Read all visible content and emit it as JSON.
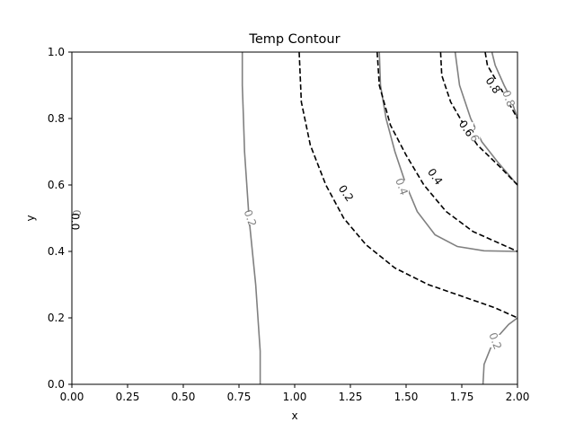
{
  "chart_data": {
    "type": "contour",
    "title": "Temp Contour",
    "xlabel": "x",
    "ylabel": "y",
    "xlim": [
      0,
      2
    ],
    "ylim": [
      0,
      1
    ],
    "x_ticks": [
      "0.00",
      "0.25",
      "0.50",
      "0.75",
      "1.00",
      "1.25",
      "1.50",
      "1.75",
      "2.00"
    ],
    "y_ticks": [
      "0.0",
      "0.2",
      "0.4",
      "0.6",
      "0.8",
      "1.0"
    ],
    "grid": false,
    "series": [
      {
        "style": "solid",
        "color": "#808080",
        "contours": [
          {
            "level": "0.2",
            "points": [
              [
                0.765,
                1.0
              ],
              [
                0.765,
                0.9
              ],
              [
                0.77,
                0.8
              ],
              [
                0.775,
                0.7
              ],
              [
                0.785,
                0.6
              ],
              [
                0.795,
                0.5
              ],
              [
                0.81,
                0.4
              ],
              [
                0.825,
                0.3
              ],
              [
                0.835,
                0.2
              ],
              [
                0.845,
                0.1
              ],
              [
                0.845,
                0.0
              ]
            ]
          },
          {
            "level": "0.4",
            "points": [
              [
                1.38,
                1.0
              ],
              [
                1.385,
                0.9
              ],
              [
                1.41,
                0.8
              ],
              [
                1.45,
                0.7
              ],
              [
                1.5,
                0.6
              ],
              [
                1.55,
                0.52
              ],
              [
                1.63,
                0.45
              ],
              [
                1.73,
                0.415
              ],
              [
                1.85,
                0.402
              ],
              [
                2.0,
                0.4
              ]
            ]
          },
          {
            "level": "0.6",
            "points": [
              [
                1.72,
                1.0
              ],
              [
                1.74,
                0.9
              ],
              [
                1.79,
                0.8
              ],
              [
                1.84,
                0.73
              ],
              [
                1.91,
                0.67
              ],
              [
                2.0,
                0.6
              ]
            ]
          },
          {
            "level": "0.8",
            "points": [
              [
                1.885,
                1.0
              ],
              [
                1.9,
                0.96
              ],
              [
                1.94,
                0.9
              ],
              [
                1.97,
                0.86
              ],
              [
                2.0,
                0.8
              ]
            ]
          },
          {
            "level": "0.2",
            "points": [
              [
                1.845,
                0.0
              ],
              [
                1.85,
                0.06
              ],
              [
                1.88,
                0.11
              ],
              [
                1.92,
                0.15
              ],
              [
                1.96,
                0.18
              ],
              [
                2.0,
                0.2
              ]
            ]
          }
        ],
        "labels": [
          {
            "text": "0.2",
            "at": [
              0.8,
              0.5
            ]
          },
          {
            "text": "0.4",
            "at": [
              1.48,
              0.595
            ]
          },
          {
            "text": "0.6",
            "at": [
              1.8,
              0.755
            ]
          },
          {
            "text": "0.8",
            "at": [
              1.96,
              0.86
            ]
          },
          {
            "text": "0.2",
            "at": [
              1.9,
              0.13
            ]
          },
          {
            "text": "0.0",
            "at": [
              0.02,
              0.5
            ]
          }
        ]
      },
      {
        "style": "dashed",
        "color": "#000000",
        "contours": [
          {
            "level": "0.2",
            "points": [
              [
                1.02,
                1.0
              ],
              [
                1.03,
                0.85
              ],
              [
                1.07,
                0.72
              ],
              [
                1.14,
                0.6
              ],
              [
                1.22,
                0.5
              ],
              [
                1.32,
                0.42
              ],
              [
                1.45,
                0.35
              ],
              [
                1.6,
                0.3
              ],
              [
                1.75,
                0.265
              ],
              [
                1.9,
                0.23
              ],
              [
                2.0,
                0.2
              ]
            ]
          },
          {
            "level": "0.4",
            "points": [
              [
                1.37,
                1.0
              ],
              [
                1.38,
                0.9
              ],
              [
                1.43,
                0.78
              ],
              [
                1.5,
                0.69
              ],
              [
                1.58,
                0.6
              ],
              [
                1.68,
                0.52
              ],
              [
                1.8,
                0.46
              ],
              [
                2.0,
                0.4
              ]
            ]
          },
          {
            "level": "0.6",
            "points": [
              [
                1.655,
                1.0
              ],
              [
                1.66,
                0.93
              ],
              [
                1.7,
                0.85
              ],
              [
                1.76,
                0.78
              ],
              [
                1.82,
                0.72
              ],
              [
                1.92,
                0.655
              ],
              [
                2.0,
                0.6
              ]
            ]
          },
          {
            "level": "0.8",
            "points": [
              [
                1.855,
                1.0
              ],
              [
                1.865,
                0.96
              ],
              [
                1.9,
                0.92
              ],
              [
                1.95,
                0.86
              ],
              [
                2.0,
                0.8
              ]
            ]
          }
        ],
        "labels": [
          {
            "text": "0.2",
            "at": [
              1.23,
              0.575
            ]
          },
          {
            "text": "0.4",
            "at": [
              1.63,
              0.625
            ]
          },
          {
            "text": "0.6",
            "at": [
              1.77,
              0.77
            ]
          },
          {
            "text": "0.8",
            "at": [
              1.89,
              0.9
            ]
          },
          {
            "text": "0.0",
            "at": [
              0.015,
              0.49
            ]
          }
        ]
      }
    ]
  }
}
